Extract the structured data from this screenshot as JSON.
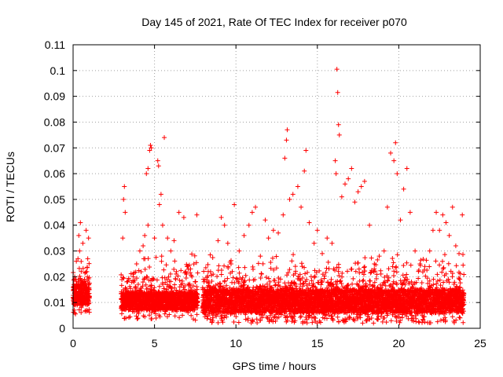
{
  "chart_data": {
    "type": "scatter",
    "title": "Day 145 of 2021, Rate Of TEC Index for receiver p070",
    "xlabel": "GPS time / hours",
    "ylabel": "ROTI / TECUs",
    "xlim": [
      0,
      25
    ],
    "ylim": [
      0,
      0.11
    ],
    "xticks": [
      0,
      5,
      10,
      15,
      20,
      25
    ],
    "xtick_labels": [
      "0",
      "5",
      "10",
      "15",
      "20",
      "25"
    ],
    "yticks": [
      0,
      0.01,
      0.02,
      0.03,
      0.04,
      0.05,
      0.06,
      0.07,
      0.08,
      0.09,
      0.1,
      0.11
    ],
    "ytick_labels": [
      "0",
      "0.01",
      "0.02",
      "0.03",
      "0.04",
      "0.05",
      "0.06",
      "0.07",
      "0.08",
      "0.09",
      "0.1",
      "0.11"
    ],
    "grid": true,
    "marker": "plus",
    "color": "#ff0000",
    "data_gaps_hours": [
      [
        1.0,
        2.95
      ],
      [
        7.65,
        7.95
      ]
    ],
    "series": [
      {
        "points": [
          [
            0.0,
            0.012
          ],
          [
            0.05,
            0.017
          ],
          [
            0.1,
            0.02
          ],
          [
            0.15,
            0.013
          ],
          [
            0.2,
            0.026
          ],
          [
            0.25,
            0.009
          ],
          [
            0.3,
            0.027
          ],
          [
            0.35,
            0.036
          ],
          [
            0.4,
            0.03
          ],
          [
            0.45,
            0.041
          ],
          [
            0.5,
            0.022
          ],
          [
            0.55,
            0.015
          ],
          [
            0.6,
            0.033
          ],
          [
            0.7,
            0.019
          ],
          [
            0.8,
            0.038
          ],
          [
            0.85,
            0.012
          ],
          [
            0.9,
            0.027
          ],
          [
            0.95,
            0.035
          ],
          [
            0.1,
            0.006
          ],
          [
            0.5,
            0.008
          ],
          [
            0.85,
            0.007
          ],
          [
            3.0,
            0.008
          ],
          [
            3.05,
            0.035
          ],
          [
            3.1,
            0.05
          ],
          [
            3.15,
            0.055
          ],
          [
            3.2,
            0.045
          ],
          [
            3.3,
            0.018
          ],
          [
            3.5,
            0.012
          ],
          [
            3.7,
            0.02
          ],
          [
            3.9,
            0.025
          ],
          [
            4.1,
            0.03
          ],
          [
            4.3,
            0.032
          ],
          [
            4.4,
            0.036
          ],
          [
            4.6,
            0.04
          ],
          [
            4.7,
            0.069
          ],
          [
            4.75,
            0.071
          ],
          [
            4.8,
            0.07
          ],
          [
            4.5,
            0.06
          ],
          [
            4.6,
            0.062
          ],
          [
            5.0,
            0.035
          ],
          [
            5.2,
            0.065
          ],
          [
            5.25,
            0.063
          ],
          [
            5.3,
            0.048
          ],
          [
            5.4,
            0.052
          ],
          [
            5.5,
            0.04
          ],
          [
            5.6,
            0.074
          ],
          [
            5.8,
            0.035
          ],
          [
            6.0,
            0.03
          ],
          [
            6.2,
            0.034
          ],
          [
            6.5,
            0.045
          ],
          [
            6.8,
            0.043
          ],
          [
            7.0,
            0.024
          ],
          [
            7.3,
            0.02
          ],
          [
            7.5,
            0.018
          ],
          [
            7.6,
            0.044
          ],
          [
            8.0,
            0.019
          ],
          [
            8.3,
            0.022
          ],
          [
            8.6,
            0.021
          ],
          [
            8.9,
            0.034
          ],
          [
            9.1,
            0.043
          ],
          [
            9.3,
            0.04
          ],
          [
            9.5,
            0.033
          ],
          [
            9.7,
            0.025
          ],
          [
            9.9,
            0.048
          ],
          [
            10.2,
            0.03
          ],
          [
            10.5,
            0.036
          ],
          [
            10.8,
            0.04
          ],
          [
            11.0,
            0.045
          ],
          [
            11.2,
            0.047
          ],
          [
            11.5,
            0.028
          ],
          [
            11.8,
            0.042
          ],
          [
            12.0,
            0.035
          ],
          [
            12.3,
            0.038
          ],
          [
            12.6,
            0.037
          ],
          [
            12.9,
            0.044
          ],
          [
            13.0,
            0.066
          ],
          [
            13.1,
            0.073
          ],
          [
            13.15,
            0.077
          ],
          [
            13.3,
            0.05
          ],
          [
            13.5,
            0.052
          ],
          [
            13.8,
            0.055
          ],
          [
            14.0,
            0.047
          ],
          [
            14.2,
            0.061
          ],
          [
            14.3,
            0.069
          ],
          [
            14.5,
            0.041
          ],
          [
            14.8,
            0.033
          ],
          [
            15.0,
            0.038
          ],
          [
            15.3,
            0.029
          ],
          [
            15.6,
            0.035
          ],
          [
            15.9,
            0.033
          ],
          [
            16.1,
            0.065
          ],
          [
            16.15,
            0.06
          ],
          [
            16.2,
            0.1005
          ],
          [
            16.25,
            0.0915
          ],
          [
            16.3,
            0.079
          ],
          [
            16.35,
            0.075
          ],
          [
            16.5,
            0.051
          ],
          [
            16.7,
            0.056
          ],
          [
            16.9,
            0.058
          ],
          [
            17.1,
            0.062
          ],
          [
            17.3,
            0.049
          ],
          [
            17.5,
            0.053
          ],
          [
            17.7,
            0.055
          ],
          [
            17.9,
            0.057
          ],
          [
            18.2,
            0.04
          ],
          [
            18.5,
            0.025
          ],
          [
            18.8,
            0.028
          ],
          [
            19.1,
            0.03
          ],
          [
            19.3,
            0.047
          ],
          [
            19.5,
            0.068
          ],
          [
            19.7,
            0.065
          ],
          [
            19.8,
            0.072
          ],
          [
            19.9,
            0.06
          ],
          [
            20.1,
            0.042
          ],
          [
            20.3,
            0.054
          ],
          [
            20.5,
            0.062
          ],
          [
            20.7,
            0.045
          ],
          [
            21.0,
            0.03
          ],
          [
            21.3,
            0.025
          ],
          [
            21.6,
            0.024
          ],
          [
            21.9,
            0.03
          ],
          [
            22.1,
            0.038
          ],
          [
            22.3,
            0.045
          ],
          [
            22.5,
            0.038
          ],
          [
            22.7,
            0.044
          ],
          [
            22.9,
            0.041
          ],
          [
            23.1,
            0.036
          ],
          [
            23.3,
            0.047
          ],
          [
            23.5,
            0.032
          ],
          [
            23.7,
            0.029
          ],
          [
            23.9,
            0.044
          ]
        ]
      }
    ],
    "dense_bands": [
      {
        "x": [
          0.0,
          1.0
        ],
        "ymin": 0.005,
        "ymax": 0.028,
        "core_hi": 0.017
      },
      {
        "x": [
          2.95,
          7.65
        ],
        "ymin": 0.003,
        "ymax": 0.03,
        "core_hi": 0.014
      },
      {
        "x": [
          7.95,
          24.0
        ],
        "ymin": 0.002,
        "ymax": 0.03,
        "core_hi": 0.015
      }
    ]
  }
}
